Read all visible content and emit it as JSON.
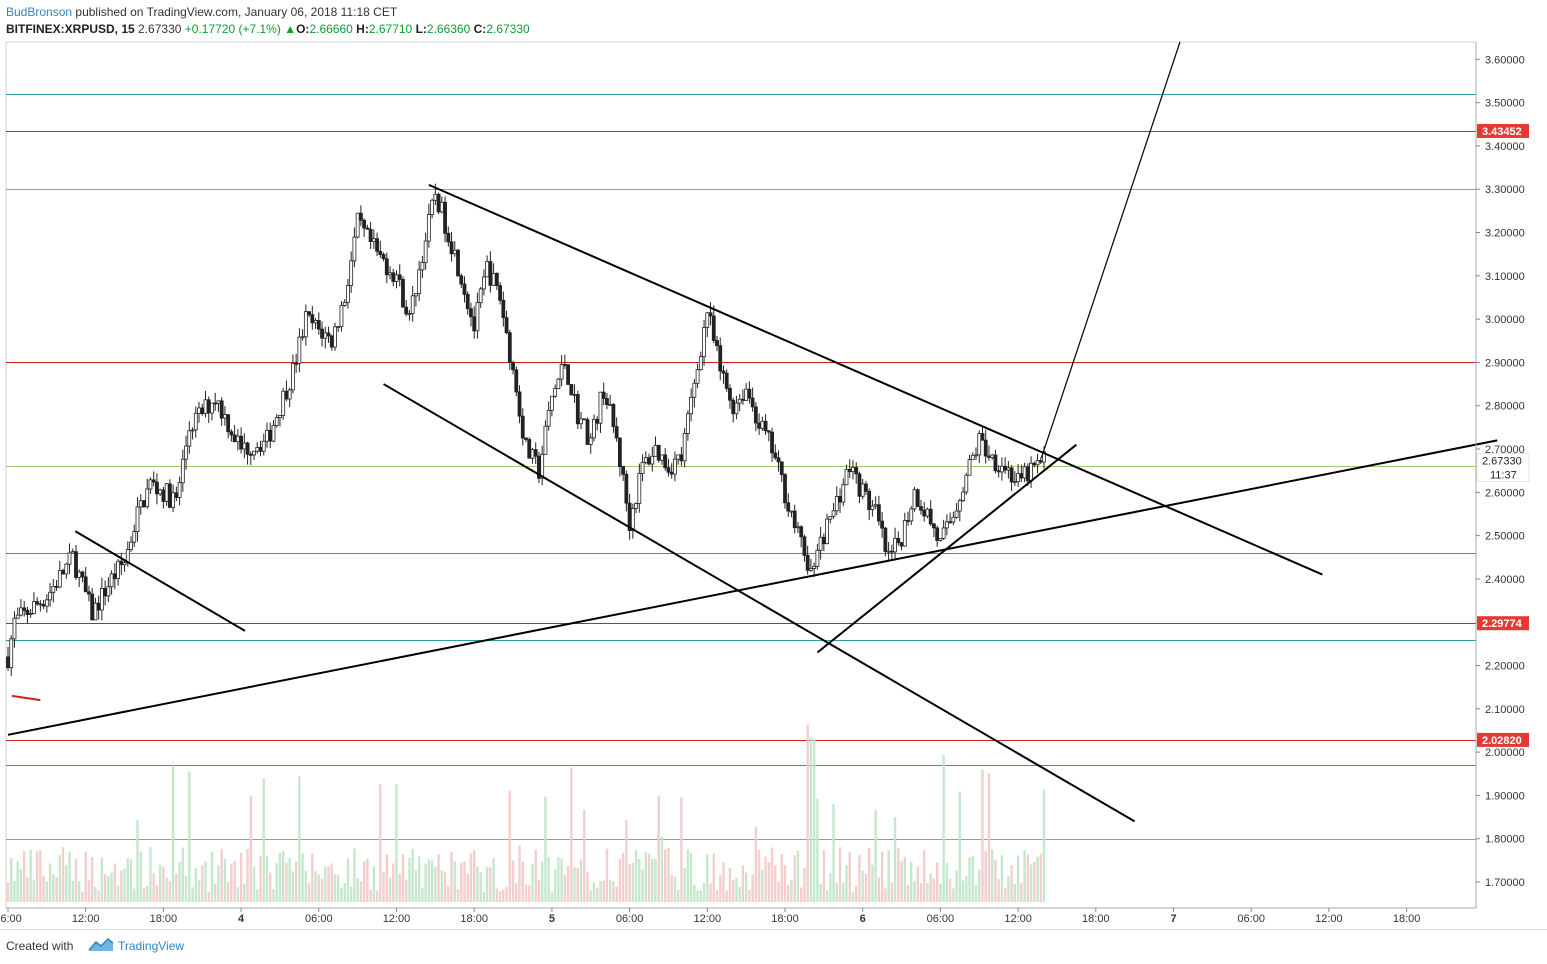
{
  "header": {
    "author": "BudBronson",
    "published_text": "published on TradingView.com, January 06, 2018 11:18 CET"
  },
  "ohlc": {
    "symbol": "BITFINEX:XRPUSD, 15",
    "last": "2.67330",
    "change": "+0.17720 (+7.1%)",
    "o_label": "O:",
    "o": "2.66660",
    "h_label": "H:",
    "h": "2.67710",
    "l_label": "L:",
    "l": "2.66360",
    "c_label": "C:",
    "c": "2.67330"
  },
  "footer": {
    "created": "Created with",
    "brand": "TradingView"
  },
  "colors": {
    "up": "#0d9e2f",
    "down": "#222222",
    "red_line": "#cc2222",
    "green_line": "#3aaa35",
    "teal_line": "#2a9d9d",
    "gray_line": "#9a9a9a",
    "badge": "#e53935"
  },
  "chart_data": {
    "type": "candlestick",
    "title": "BITFINEX:XRPUSD, 15",
    "ylim": [
      1.64,
      3.64
    ],
    "y_ticks": [
      "1.70000",
      "1.80000",
      "1.90000",
      "2.00000",
      "2.10000",
      "2.20000",
      "2.30000",
      "2.40000",
      "2.50000",
      "2.60000",
      "2.70000",
      "2.80000",
      "2.90000",
      "3.00000",
      "3.10000",
      "3.20000",
      "3.30000",
      "3.40000",
      "3.50000",
      "3.60000"
    ],
    "x_ticks": [
      "06:00",
      "12:00",
      "18:00",
      "4",
      "06:00",
      "12:00",
      "18:00",
      "5",
      "06:00",
      "12:00",
      "18:00",
      "6",
      "06:00",
      "12:00",
      "18:00",
      "7",
      "06:00",
      "12:00",
      "18:00"
    ],
    "current_price": "2.67330",
    "countdown": "11:37",
    "price_badges": [
      "3.43452",
      "2.29774",
      "2.02820"
    ],
    "horizontal_levels": [
      {
        "price": 3.52,
        "color": "teal"
      },
      {
        "price": 3.43452,
        "color": "red"
      },
      {
        "price": 3.3,
        "color": "gray"
      },
      {
        "price": 2.9,
        "color": "red"
      },
      {
        "price": 2.66,
        "color": "lightgreen"
      },
      {
        "price": 2.46,
        "color": "green"
      },
      {
        "price": 2.29774,
        "color": "red"
      },
      {
        "price": 2.26,
        "color": "teal"
      },
      {
        "price": 2.0282,
        "color": "red"
      },
      {
        "price": 1.97,
        "color": "teal"
      },
      {
        "price": 1.8,
        "color": "gray"
      }
    ],
    "price_path": [
      {
        "t": 0,
        "p": 2.22
      },
      {
        "t": 0.5,
        "p": 2.3
      },
      {
        "t": 3,
        "p": 2.36
      },
      {
        "t": 5,
        "p": 2.45
      },
      {
        "t": 6.5,
        "p": 2.32
      },
      {
        "t": 8,
        "p": 2.4
      },
      {
        "t": 9,
        "p": 2.44
      },
      {
        "t": 10,
        "p": 2.55
      },
      {
        "t": 11,
        "p": 2.62
      },
      {
        "t": 13,
        "p": 2.58
      },
      {
        "t": 14,
        "p": 2.75
      },
      {
        "t": 16,
        "p": 2.82
      },
      {
        "t": 18,
        "p": 2.7
      },
      {
        "t": 20,
        "p": 2.72
      },
      {
        "t": 22,
        "p": 2.88
      },
      {
        "t": 23,
        "p": 3.0
      },
      {
        "t": 25,
        "p": 2.95
      },
      {
        "t": 26,
        "p": 3.05
      },
      {
        "t": 27,
        "p": 3.22
      },
      {
        "t": 28.5,
        "p": 3.15
      },
      {
        "t": 30,
        "p": 3.1
      },
      {
        "t": 31,
        "p": 3.0
      },
      {
        "t": 32,
        "p": 3.15
      },
      {
        "t": 33,
        "p": 3.29
      },
      {
        "t": 34,
        "p": 3.2
      },
      {
        "t": 35,
        "p": 3.1
      },
      {
        "t": 36,
        "p": 2.98
      },
      {
        "t": 37,
        "p": 3.12
      },
      {
        "t": 38,
        "p": 3.05
      },
      {
        "t": 39,
        "p": 2.88
      },
      {
        "t": 40,
        "p": 2.7
      },
      {
        "t": 41,
        "p": 2.65
      },
      {
        "t": 42,
        "p": 2.82
      },
      {
        "t": 43,
        "p": 2.9
      },
      {
        "t": 44,
        "p": 2.78
      },
      {
        "t": 45,
        "p": 2.72
      },
      {
        "t": 46,
        "p": 2.84
      },
      {
        "t": 47,
        "p": 2.72
      },
      {
        "t": 48,
        "p": 2.53
      },
      {
        "t": 49,
        "p": 2.66
      },
      {
        "t": 50,
        "p": 2.7
      },
      {
        "t": 51,
        "p": 2.66
      },
      {
        "t": 52,
        "p": 2.68
      },
      {
        "t": 53,
        "p": 2.85
      },
      {
        "t": 54,
        "p": 3.02
      },
      {
        "t": 55,
        "p": 2.88
      },
      {
        "t": 56,
        "p": 2.8
      },
      {
        "t": 57,
        "p": 2.84
      },
      {
        "t": 58,
        "p": 2.76
      },
      {
        "t": 59,
        "p": 2.7
      },
      {
        "t": 60,
        "p": 2.6
      },
      {
        "t": 61,
        "p": 2.5
      },
      {
        "t": 62,
        "p": 2.42
      },
      {
        "t": 63,
        "p": 2.5
      },
      {
        "t": 64,
        "p": 2.58
      },
      {
        "t": 65,
        "p": 2.66
      },
      {
        "t": 66,
        "p": 2.6
      },
      {
        "t": 67,
        "p": 2.55
      },
      {
        "t": 68,
        "p": 2.44
      },
      {
        "t": 69,
        "p": 2.5
      },
      {
        "t": 70,
        "p": 2.6
      },
      {
        "t": 71,
        "p": 2.55
      },
      {
        "t": 72,
        "p": 2.48
      },
      {
        "t": 73,
        "p": 2.55
      },
      {
        "t": 74,
        "p": 2.64
      },
      {
        "t": 75,
        "p": 2.72
      },
      {
        "t": 76,
        "p": 2.68
      },
      {
        "t": 77,
        "p": 2.66
      },
      {
        "t": 78,
        "p": 2.62
      },
      {
        "t": 79,
        "p": 2.65
      },
      {
        "t": 80,
        "p": 2.673
      }
    ],
    "trendlines": [
      {
        "name": "upper-channel",
        "from": [
          32.5,
          3.31
        ],
        "to": [
          101.5,
          2.41
        ]
      },
      {
        "name": "lower-channel",
        "from": [
          29,
          2.85
        ],
        "to": [
          87,
          1.84
        ]
      },
      {
        "name": "long-support",
        "from": [
          0,
          2.04
        ],
        "to": [
          115,
          2.72
        ]
      },
      {
        "name": "rising-support",
        "from": [
          62.5,
          2.23
        ],
        "to": [
          82.5,
          2.71
        ]
      },
      {
        "name": "early-down",
        "from": [
          5.2,
          2.51
        ],
        "to": [
          18.3,
          2.28
        ]
      },
      {
        "name": "projection",
        "from": [
          79.8,
          2.68
        ],
        "to": [
          90.5,
          3.64
        ]
      },
      {
        "name": "red-stub",
        "from": [
          0.3,
          2.13
        ],
        "to": [
          2.5,
          2.12
        ]
      }
    ]
  }
}
